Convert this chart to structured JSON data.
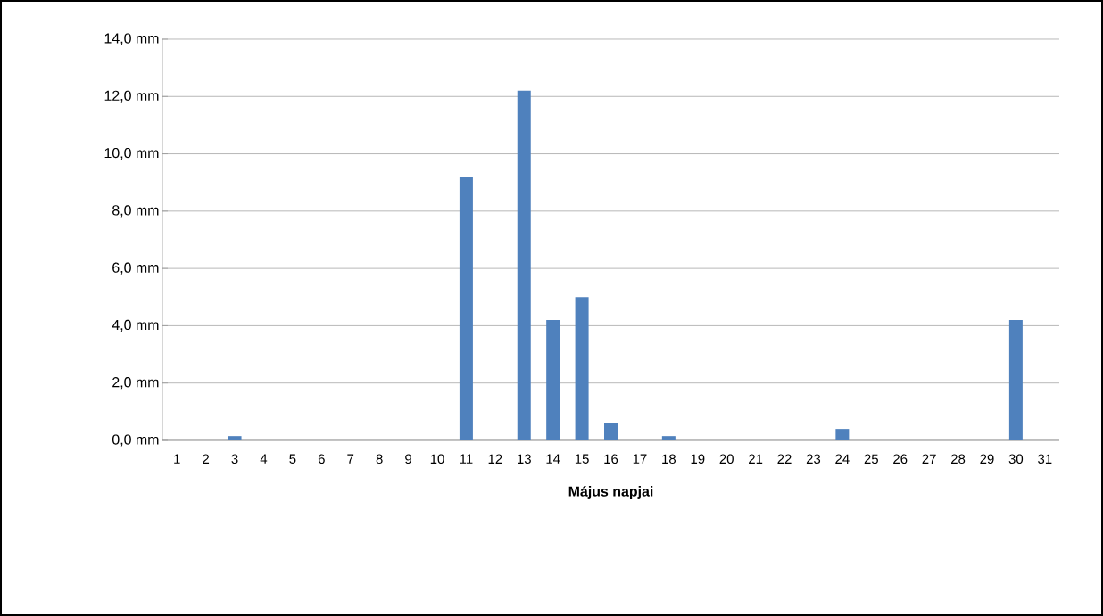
{
  "chart_data": {
    "type": "bar",
    "xlabel": "Május napjai",
    "categories": [
      "1",
      "2",
      "3",
      "4",
      "5",
      "6",
      "7",
      "8",
      "9",
      "10",
      "11",
      "12",
      "13",
      "14",
      "15",
      "16",
      "17",
      "18",
      "19",
      "20",
      "21",
      "22",
      "23",
      "24",
      "25",
      "26",
      "27",
      "28",
      "29",
      "30",
      "31"
    ],
    "values": [
      0,
      0,
      0.15,
      0,
      0,
      0,
      0,
      0,
      0,
      0,
      9.2,
      0,
      12.2,
      4.2,
      5.0,
      0.6,
      0,
      0.15,
      0,
      0,
      0,
      0,
      0,
      0.4,
      0,
      0,
      0,
      0,
      0,
      4.2,
      0
    ],
    "color": "#4f81bd",
    "ylim": [
      0,
      14
    ],
    "yticks": [
      {
        "value": 0,
        "label": "0,0 mm"
      },
      {
        "value": 2,
        "label": "2,0 mm"
      },
      {
        "value": 4,
        "label": "4,0 mm"
      },
      {
        "value": 6,
        "label": "6,0 mm"
      },
      {
        "value": 8,
        "label": "8,0 mm"
      },
      {
        "value": 10,
        "label": "10,0 mm"
      },
      {
        "value": 12,
        "label": "12,0 mm"
      },
      {
        "value": 14,
        "label": "14,0 mm"
      }
    ],
    "grid": "y"
  }
}
